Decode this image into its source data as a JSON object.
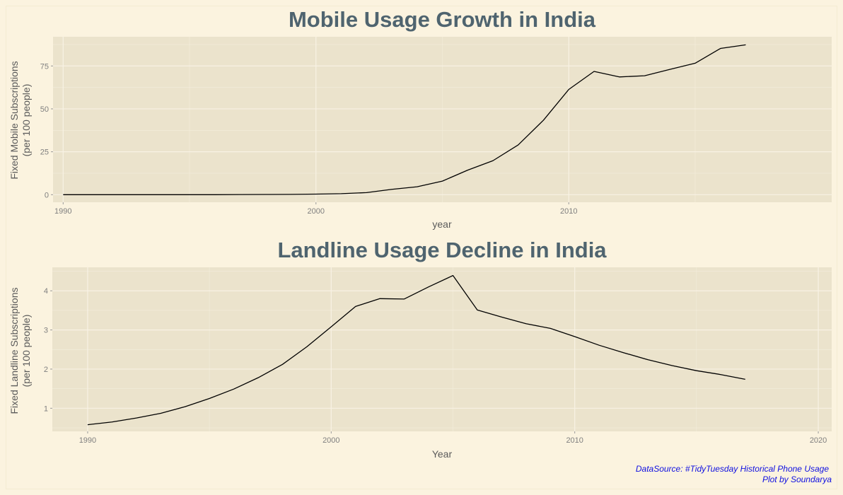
{
  "chart_data": [
    {
      "type": "line",
      "title": "Mobile Usage Growth in India",
      "xlabel": "year",
      "ylabel": [
        "Fixed Mobile Subscriptions",
        "(per 100 people)"
      ],
      "xlim": [
        1989.6,
        2020.4
      ],
      "ylim": [
        -4.4,
        92
      ],
      "xticks": [
        1990,
        2000,
        2010
      ],
      "yticks": [
        0,
        25,
        50,
        75
      ],
      "grid": true,
      "series": [
        {
          "x": [
            1990,
            1991,
            1992,
            1993,
            1994,
            1995,
            1996,
            1997,
            1998,
            1999,
            2000,
            2001,
            2002,
            2003,
            2004,
            2005,
            2006,
            2007,
            2008,
            2009,
            2010,
            2011,
            2012,
            2013,
            2014,
            2015,
            2016,
            2017
          ],
          "values": [
            0,
            0,
            0,
            0,
            0,
            0,
            0.01,
            0.09,
            0.12,
            0.19,
            0.34,
            0.6,
            1.2,
            3.1,
            4.6,
            7.9,
            14.3,
            19.8,
            29.0,
            43.4,
            61.3,
            71.8,
            68.6,
            69.3,
            73.0,
            76.6,
            85.2,
            87.3
          ]
        }
      ]
    },
    {
      "type": "line",
      "title": "Landline Usage Decline in India",
      "xlabel": "Year",
      "ylabel": [
        "Fixed Landline Subscriptions",
        "(per 100 people)"
      ],
      "xlim": [
        1988.55,
        2020.55
      ],
      "ylim": [
        0.41,
        4.6
      ],
      "xticks": [
        1990,
        2000,
        2010,
        2020
      ],
      "yticks": [
        1,
        2,
        3,
        4
      ],
      "grid": true,
      "series": [
        {
          "x": [
            1990,
            1991,
            1992,
            1993,
            1994,
            1995,
            1996,
            1997,
            1998,
            1999,
            2000,
            2001,
            2002,
            2003,
            2004,
            2005,
            2006,
            2007,
            2008,
            2009,
            2010,
            2011,
            2012,
            2013,
            2014,
            2015,
            2016,
            2017
          ],
          "values": [
            0.58,
            0.65,
            0.75,
            0.87,
            1.04,
            1.25,
            1.49,
            1.78,
            2.12,
            2.57,
            3.08,
            3.6,
            3.8,
            3.79,
            4.1,
            4.39,
            3.51,
            3.33,
            3.16,
            3.04,
            2.83,
            2.61,
            2.42,
            2.24,
            2.09,
            1.96,
            1.86,
            1.74
          ]
        }
      ]
    }
  ],
  "caption": {
    "line1": "DataSource: #TidyTuesday Historical Phone Usage",
    "line2": "Plot by Soundarya"
  }
}
